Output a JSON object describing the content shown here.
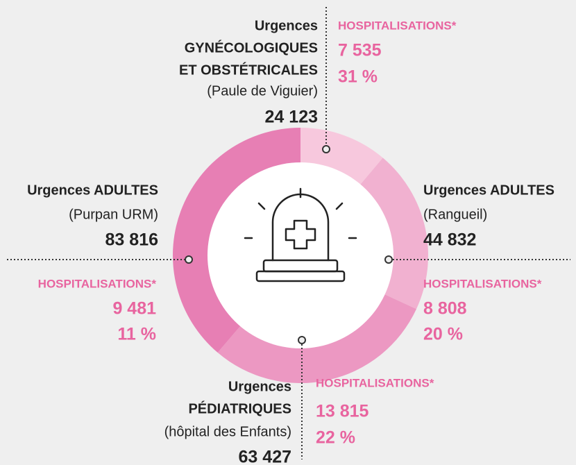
{
  "chart_data": {
    "type": "donut",
    "colors": [
      "#f7c8dd",
      "#f1b1d0",
      "#ec98c2",
      "#e77fb4"
    ],
    "segments": [
      {
        "lines": [
          "Urgences",
          "GYNÉCOLOGIQUES",
          "ET OBSTÉTRICALES"
        ],
        "note": "(Paule de Viguier)",
        "value": 24123,
        "value_label": "24 123",
        "hosp_title": "HOSPITALISATIONS*",
        "hosp_value": 7535,
        "hosp_value_label": "7 535",
        "hosp_percent": 31,
        "hosp_percent_label": "31 %"
      },
      {
        "lines": [
          "Urgences ADULTES"
        ],
        "note": "(Rangueil)",
        "value": 44832,
        "value_label": "44 832",
        "hosp_title": "HOSPITALISATIONS*",
        "hosp_value": 8808,
        "hosp_value_label": "8 808",
        "hosp_percent": 20,
        "hosp_percent_label": "20 %"
      },
      {
        "lines": [
          "Urgences",
          "PÉDIATRIQUES"
        ],
        "note": "(hôpital des Enfants)",
        "value": 63427,
        "value_label": "63 427",
        "hosp_title": "HOSPITALISATIONS*",
        "hosp_value": 13815,
        "hosp_value_label": "13 815",
        "hosp_percent": 22,
        "hosp_percent_label": "22 %"
      },
      {
        "lines": [
          "Urgences ADULTES"
        ],
        "note": "(Purpan URM)",
        "value": 83816,
        "value_label": "83 816",
        "hosp_title": "HOSPITALISATIONS*",
        "hosp_value": 9481,
        "hosp_value_label": "9 481",
        "hosp_percent": 11,
        "hosp_percent_label": "11 %"
      }
    ]
  }
}
